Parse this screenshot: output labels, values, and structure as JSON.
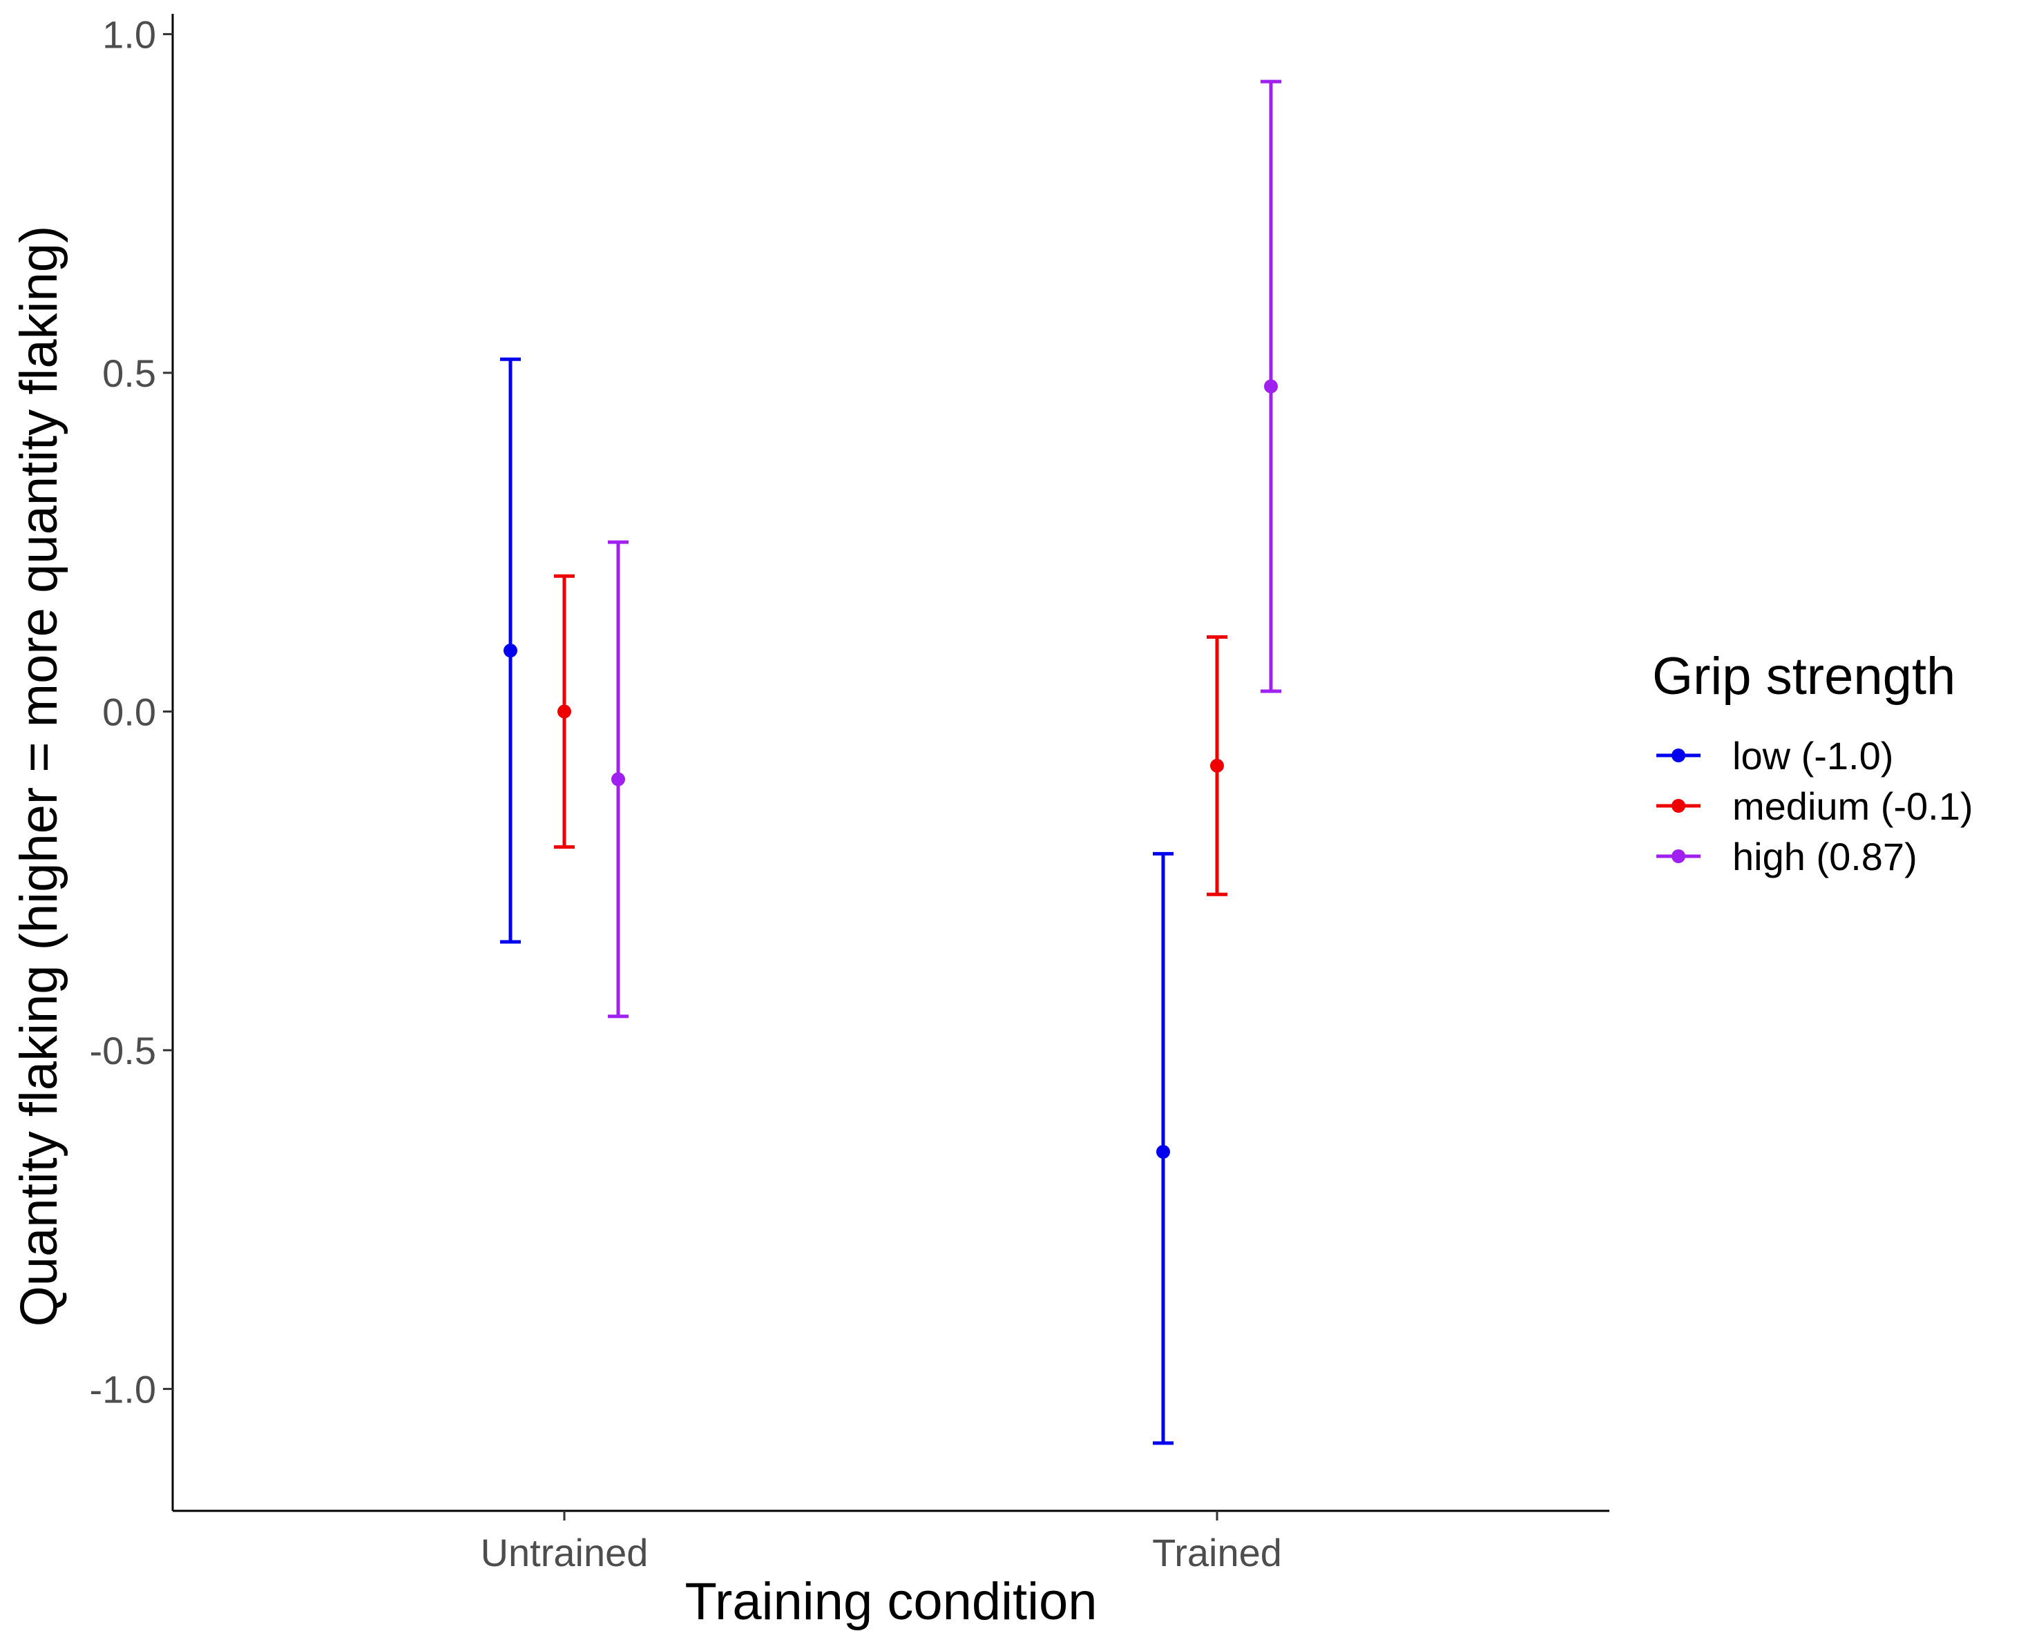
{
  "chart_data": {
    "type": "errorbar",
    "xlabel": "Training condition",
    "ylabel": "Quantity flaking (higher = more quantity flaking)",
    "categories": [
      "Untrained",
      "Trained"
    ],
    "ylim": [
      -1.18,
      1.03
    ],
    "yticks": [
      -1.0,
      -0.5,
      0.0,
      0.5,
      1.0
    ],
    "ytick_labels": [
      "-1.0",
      "-0.5",
      "0.0",
      "0.5",
      "1.0"
    ],
    "grid": false,
    "legend": {
      "title": "Grip strength",
      "position": "right"
    },
    "series": [
      {
        "name": "low (-1.0)",
        "color": "#0000ee",
        "points": [
          {
            "category": "Untrained",
            "y": 0.09,
            "ymin": -0.34,
            "ymax": 0.52
          },
          {
            "category": "Trained",
            "y": -0.65,
            "ymin": -1.08,
            "ymax": -0.21
          }
        ]
      },
      {
        "name": "medium (-0.1)",
        "color": "#ee0000",
        "points": [
          {
            "category": "Untrained",
            "y": 0.0,
            "ymin": -0.2,
            "ymax": 0.2
          },
          {
            "category": "Trained",
            "y": -0.08,
            "ymin": -0.27,
            "ymax": 0.11
          }
        ]
      },
      {
        "name": "high (0.87)",
        "color": "#a020f0",
        "points": [
          {
            "category": "Untrained",
            "y": -0.1,
            "ymin": -0.45,
            "ymax": 0.25
          },
          {
            "category": "Trained",
            "y": 0.48,
            "ymin": 0.03,
            "ymax": 0.93
          }
        ]
      }
    ]
  }
}
